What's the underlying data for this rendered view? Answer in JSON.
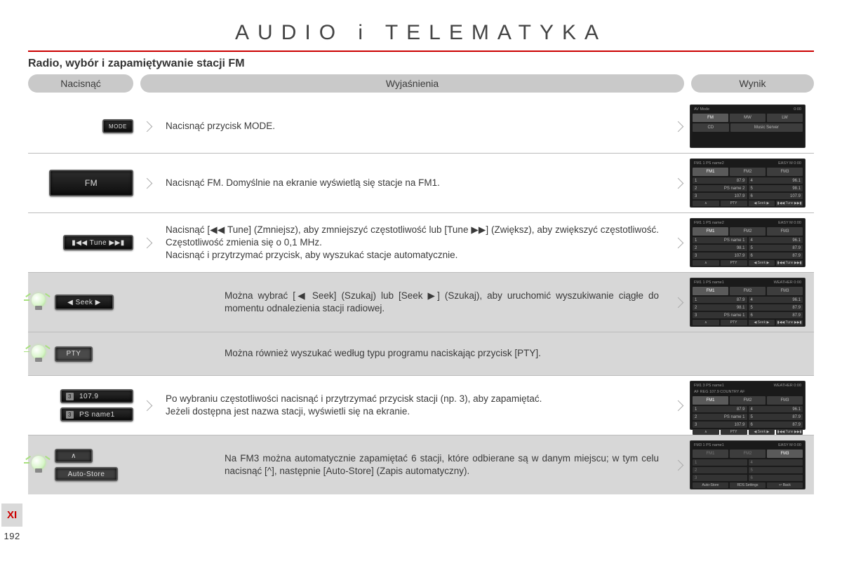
{
  "title": "AUDIO i TELEMATYKA",
  "subheading": "Radio, wybór i zapamiętywanie stacji FM",
  "columns": {
    "press": "Nacisnąć",
    "explain": "Wyjaśnienia",
    "result": "Wynik"
  },
  "page": {
    "section": "XI",
    "number": "192"
  },
  "buttons": {
    "mode": "MODE",
    "fm": "FM",
    "tune": "▮◀◀ Tune ▶▶▮",
    "seek": "◀  Seek  ▶",
    "pty": "PTY",
    "preset_num": "3",
    "preset_freq": "107.9",
    "preset_name": "PS name1",
    "up": "∧",
    "autostore": "Auto-Store"
  },
  "rows": {
    "mode": "Nacisnąć przycisk MODE.",
    "fm": "Nacisnąć FM. Domyślnie na ekranie wyświetlą się stacje na FM1.",
    "tune": "Nacisnąć [◀◀ Tune] (Zmniejsz), aby zmniejszyć częstotliwość lub [Tune ▶▶] (Zwiększ), aby zwiększyć częstotliwość. Częstotliwość zmienia się o 0,1 MHz.\nNacisnąć i przytrzymać przycisk, aby wyszukać stacje automatycznie.",
    "seek": "Można wybrać [◀ Seek] (Szukaj) lub [Seek ▶] (Szukaj), aby uruchomić wyszukiwanie ciągłe do momentu odnalezienia stacji radiowej.",
    "pty": "Można również wyszukać według typu programu naciskając przycisk [PTY].",
    "preset": "Po wybraniu częstotliwości nacisnąć i przytrzymać przycisk stacji (np. 3), aby zapamiętać.\nJeżeli dostępna jest nazwa stacji, wyświetli się na ekranie.",
    "autostore": "Na FM3 można automatycznie zapamiętać 6 stacji, które odbierane są w danym miejscu; w tym celu nacisnąć [^], następnie [Auto-Store] (Zapis automatyczny)."
  },
  "screens": {
    "av": {
      "head_l": "AV Mode",
      "head_r": "0:00",
      "tabs": [
        "FM",
        "MW",
        "LW"
      ],
      "tabs2": [
        "CD",
        "Music Server",
        ""
      ]
    },
    "fm": {
      "head_l": "FM1 1  PS name2",
      "head_r": "EASY M  0:00",
      "tabs": [
        "FM1",
        "FM2",
        "FM3"
      ],
      "cells": [
        [
          "1",
          "87.9",
          "4",
          "96.1"
        ],
        [
          "2",
          "PS name 2",
          "5",
          "98.1"
        ],
        [
          "3",
          "107.9",
          "6",
          "107.9"
        ]
      ],
      "foot": [
        "∧",
        "PTY",
        "◀ Seek ▶",
        "▮◀◀ Tune ▶▶▮"
      ]
    },
    "fm_b": {
      "head_l": "FM1 1  PS name2",
      "head_r": "EASY M  0:00",
      "tabs": [
        "FM1",
        "FM2",
        "FM3"
      ],
      "cells": [
        [
          "1",
          "PS name 1",
          "4",
          "96.1"
        ],
        [
          "2",
          "98.1",
          "5",
          "87.9"
        ],
        [
          "3",
          "107.9",
          "6",
          "87.9"
        ]
      ],
      "foot": [
        "∧",
        "PTY",
        "◀ Seek ▶",
        "▮◀◀ Tune ▶▶▮"
      ]
    },
    "seek": {
      "head_l": "FM1 1  PS name1",
      "head_r": "WEATHER  0:00",
      "tabs": [
        "FM1",
        "FM2",
        "FM3"
      ],
      "cells": [
        [
          "1",
          "87.9",
          "4",
          "96.1"
        ],
        [
          "2",
          "98.1",
          "5",
          "87.9"
        ],
        [
          "3",
          "PS name 1",
          "6",
          "87.9"
        ]
      ],
      "foot": [
        "∧",
        "PTY",
        "◀ Seek ▶",
        "▮◀◀ Tune ▶▶▮"
      ]
    },
    "preset": {
      "head_l": "FM1 3  PS name1",
      "head_r": "WEATHER  0:00",
      "sub": "AF  REG  107.9  COUNTRY  AF",
      "tabs": [
        "FM1",
        "FM2",
        "FM3"
      ],
      "cells": [
        [
          "1",
          "87.9",
          "4",
          "96.1"
        ],
        [
          "2",
          "PS name 1",
          "5",
          "87.9"
        ],
        [
          "3",
          "107.9",
          "6",
          "87.9"
        ]
      ],
      "foot": [
        "∧",
        "PTY",
        "◀ Seek ▶",
        "▮◀◀ Tune ▶▶▮"
      ]
    },
    "auto": {
      "head_l": "FM3 1  PS name1",
      "head_r": "EASY M  0:00",
      "tabs": [
        "FM1",
        "FM2",
        "FM3"
      ],
      "cells": [
        [
          "1",
          "",
          "4",
          ""
        ],
        [
          "2",
          "",
          "5",
          ""
        ],
        [
          "3",
          "",
          "6",
          ""
        ]
      ],
      "foot": [
        "Auto-Store",
        "RDS Settings",
        "↩ Back"
      ]
    }
  }
}
